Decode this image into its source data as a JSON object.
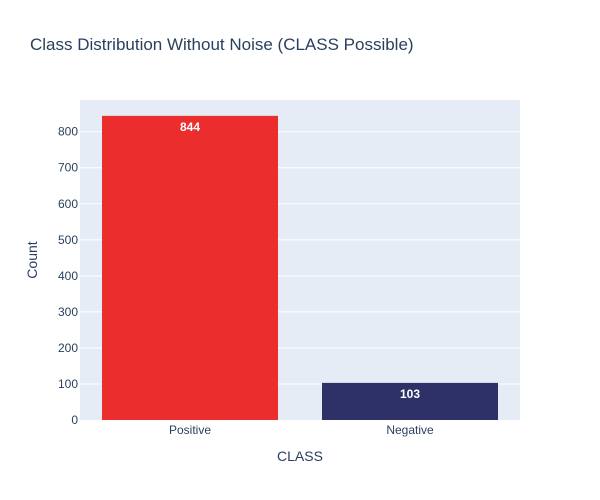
{
  "chart_data": {
    "type": "bar",
    "title": "Class Distribution Without Noise (CLASS Possible)",
    "xlabel": "CLASS",
    "ylabel": "Count",
    "categories": [
      "Positive",
      "Negative"
    ],
    "values": [
      844,
      103
    ],
    "data_labels": [
      "844",
      "103"
    ],
    "bar_colors": [
      "#EB2D2E",
      "#2E3168"
    ],
    "ylim": [
      0,
      888
    ],
    "yticks": [
      0,
      100,
      200,
      300,
      400,
      500,
      600,
      700,
      800
    ],
    "grid": true,
    "legend": "none",
    "plot_background": "#E5ECF6"
  }
}
